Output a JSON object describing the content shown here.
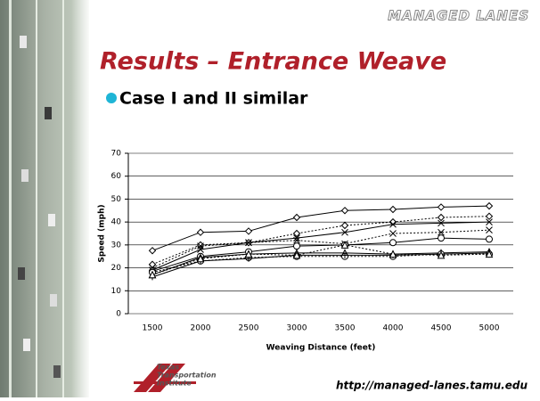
{
  "header": {
    "brand": "MANAGED LANES",
    "title": "Results – Entrance Weave",
    "bullet": "Case I and II similar"
  },
  "footer": {
    "url": "http://managed-lanes.tamu.edu",
    "logo": [
      "Texas",
      "Transportation",
      "Institute"
    ]
  },
  "chart_data": {
    "type": "line",
    "y_label": "Speed (mph)",
    "x_label": "Weaving Distance (feet)",
    "categories": [
      "1500",
      "2000",
      "2500",
      "3000",
      "3500",
      "4000",
      "4500",
      "5000"
    ],
    "ylim": [
      0,
      70
    ],
    "yticks": [
      0,
      10,
      20,
      30,
      40,
      50,
      60,
      70
    ],
    "grid": true,
    "series": [
      {
        "color": "#000000",
        "dash": false,
        "marker": "diamond",
        "values": [
          27.5,
          35.5,
          36,
          42,
          45,
          45.5,
          46.5,
          47
        ]
      },
      {
        "color": "#000000",
        "dash": true,
        "marker": "diamond",
        "values": [
          21.5,
          30,
          31,
          35,
          38.5,
          40,
          42,
          42.5
        ]
      },
      {
        "color": "#000000",
        "dash": false,
        "marker": "x",
        "values": [
          19,
          28,
          31,
          33,
          35.5,
          39,
          39.5,
          40
        ]
      },
      {
        "color": "#000000",
        "dash": true,
        "marker": "x",
        "values": [
          20,
          29.5,
          31,
          32,
          30.5,
          35,
          35.5,
          36.5
        ]
      },
      {
        "color": "#000000",
        "dash": false,
        "marker": "circle",
        "values": [
          18.5,
          25,
          27,
          29.5,
          30,
          31,
          33,
          32.5
        ]
      },
      {
        "color": "#000000",
        "dash": false,
        "marker": "triangle",
        "values": [
          17,
          24.5,
          26,
          26.5,
          26.5,
          26,
          26.5,
          27
        ]
      },
      {
        "color": "#000000",
        "dash": true,
        "marker": "circle",
        "values": [
          18,
          23,
          24.5,
          25,
          25,
          25,
          26,
          26
        ]
      },
      {
        "color": "#000000",
        "dash": false,
        "marker": "plus",
        "values": [
          16,
          23,
          24,
          25.5,
          25.5,
          25.5,
          26,
          26.5
        ]
      },
      {
        "color": "#000000",
        "dash": true,
        "marker": "triangle",
        "values": [
          17,
          24,
          26,
          25.5,
          30,
          26,
          25.5,
          26
        ]
      }
    ]
  }
}
